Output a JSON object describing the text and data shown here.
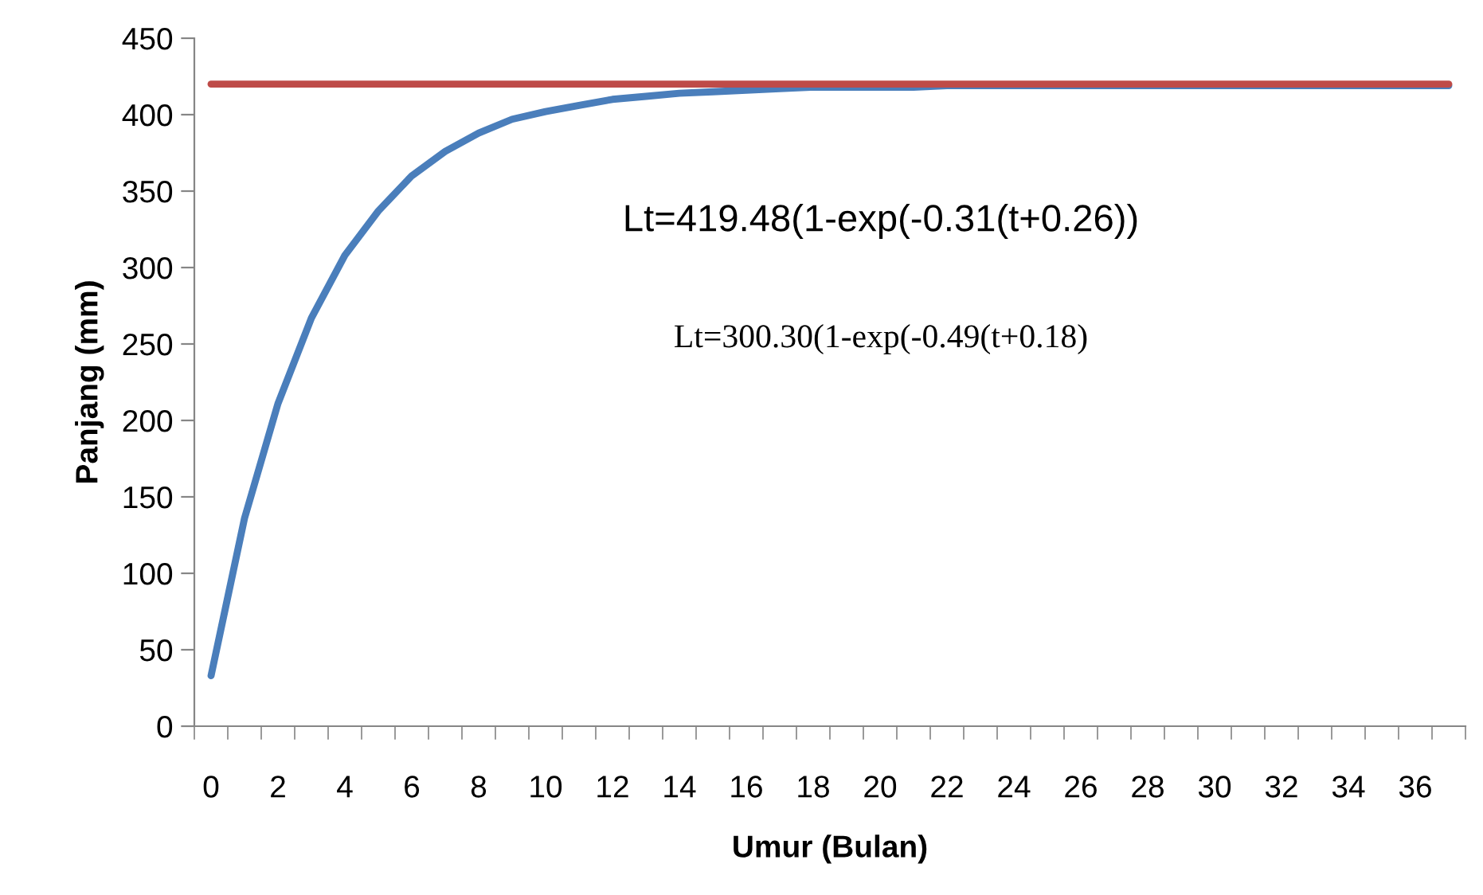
{
  "chart_data": {
    "type": "line",
    "xlabel": "Umur (Bulan)",
    "ylabel": "Panjang (mm)",
    "categories": [
      "0",
      null,
      "2",
      null,
      "4",
      null,
      "6",
      null,
      "8",
      null,
      "10",
      null,
      "12",
      null,
      "14",
      null,
      "16",
      null,
      "18",
      null,
      "20",
      null,
      "22",
      null,
      "24",
      null,
      "26",
      null,
      "28",
      null,
      "30",
      null,
      "32",
      null,
      "34",
      null,
      "36",
      null
    ],
    "series": [
      {
        "color": "#4a7ebb",
        "values": [
          33,
          136,
          211,
          267,
          308,
          337,
          360,
          376,
          388,
          397,
          402,
          406,
          410,
          412,
          414,
          415,
          416,
          417,
          418,
          418,
          418,
          418,
          419,
          419,
          419,
          419,
          419,
          419,
          419,
          419,
          419,
          419,
          419,
          419,
          419,
          419,
          419,
          419
        ]
      },
      {
        "color": "#be4b48",
        "values": [
          420,
          420,
          420,
          420,
          420,
          420,
          420,
          420,
          420,
          420,
          420,
          420,
          420,
          420,
          420,
          420,
          420,
          420,
          420,
          420,
          420,
          420,
          420,
          420,
          420,
          420,
          420,
          420,
          420,
          420,
          420,
          420,
          420,
          420,
          420,
          420,
          420,
          420
        ]
      }
    ],
    "ylim": [
      0,
      450
    ],
    "yticks": [
      0,
      50,
      100,
      150,
      200,
      250,
      300,
      350,
      400,
      450
    ],
    "grid": false,
    "legend": false,
    "marker": "none",
    "line_style": "solid",
    "annotations": [
      "Lt=419.48(1-exp(-0.31(t+0.26))",
      "Lt=300.30(1-exp(-0.49(t+0.18)"
    ]
  }
}
